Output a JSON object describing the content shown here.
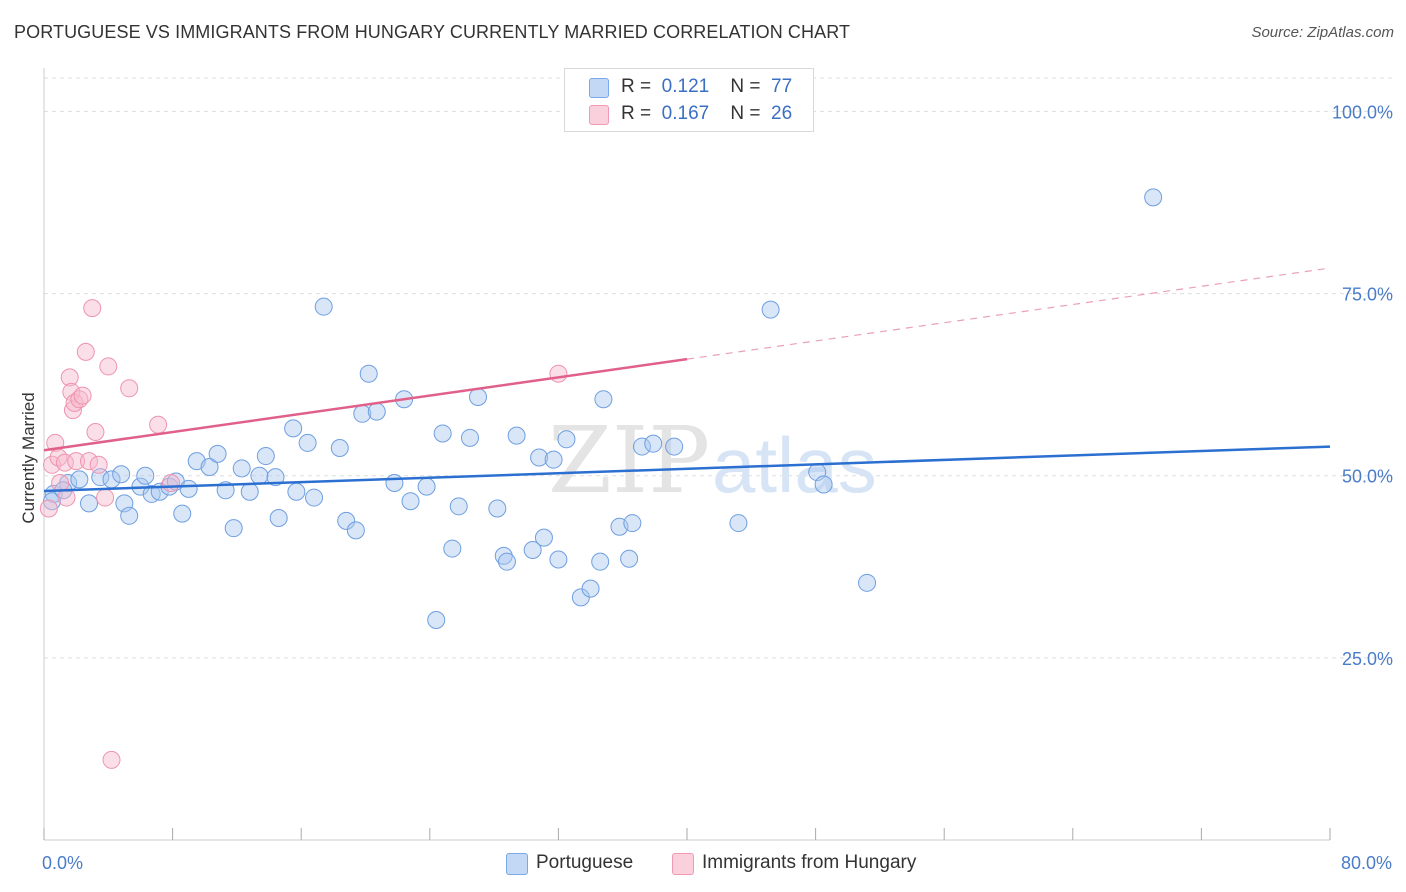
{
  "header": {
    "title": "PORTUGUESE VS IMMIGRANTS FROM HUNGARY CURRENTLY MARRIED CORRELATION CHART",
    "source": "Source: ZipAtlas.com"
  },
  "watermark": {
    "zip": "ZIP",
    "atlas": "atlas"
  },
  "legend": {
    "rows": [
      {
        "r_label": "R =",
        "r_value": "0.121",
        "n_label": "N =",
        "n_value": "77",
        "color": "#a8c8f0"
      },
      {
        "r_label": "R =",
        "r_value": "0.167",
        "n_label": "N =",
        "n_value": "26",
        "color": "#f7b8cc"
      }
    ]
  },
  "bottom_legend": {
    "items": [
      {
        "label": "Portuguese",
        "color": "#a8c8f0"
      },
      {
        "label": "Immigrants from Hungary",
        "color": "#f7b8cc"
      }
    ]
  },
  "chart_data": {
    "type": "scatter",
    "ylabel": "Currently Married",
    "xlim": [
      0,
      80
    ],
    "ylim": [
      0,
      105
    ],
    "x_tick_labels": [
      "0.0%",
      "80.0%"
    ],
    "x_tick_values": [
      0,
      80
    ],
    "y_ticks": [
      {
        "value": 25,
        "label": "25.0%"
      },
      {
        "value": 50,
        "label": "50.0%"
      },
      {
        "value": 75,
        "label": "75.0%"
      },
      {
        "value": 100,
        "label": "100.0%"
      }
    ],
    "grid": true,
    "series": [
      {
        "name": "Portuguese",
        "color": "#7aa8e8",
        "trend": {
          "x0": 0,
          "y0": 47.9,
          "x1": 80,
          "y1": 54.0,
          "color": "#2b6fd1"
        },
        "points": [
          [
            0.6,
            47.5
          ],
          [
            1.5,
            49.0
          ],
          [
            2.2,
            49.5
          ],
          [
            2.8,
            46.2
          ],
          [
            3.5,
            49.8
          ],
          [
            4.2,
            49.5
          ],
          [
            4.8,
            50.2
          ],
          [
            5.0,
            46.2
          ],
          [
            5.3,
            44.5
          ],
          [
            6.0,
            48.5
          ],
          [
            6.3,
            50.0
          ],
          [
            6.7,
            47.5
          ],
          [
            7.2,
            47.8
          ],
          [
            7.8,
            48.5
          ],
          [
            8.2,
            49.2
          ],
          [
            8.6,
            44.8
          ],
          [
            9.0,
            48.2
          ],
          [
            9.5,
            52.0
          ],
          [
            10.3,
            51.2
          ],
          [
            10.8,
            53.0
          ],
          [
            11.3,
            48.0
          ],
          [
            11.8,
            42.8
          ],
          [
            12.3,
            51.0
          ],
          [
            12.8,
            47.8
          ],
          [
            13.4,
            50.0
          ],
          [
            13.8,
            52.7
          ],
          [
            14.4,
            49.8
          ],
          [
            14.6,
            44.2
          ],
          [
            15.5,
            56.5
          ],
          [
            15.7,
            47.8
          ],
          [
            16.4,
            54.5
          ],
          [
            16.8,
            47.0
          ],
          [
            17.4,
            73.2
          ],
          [
            18.4,
            53.8
          ],
          [
            18.8,
            43.8
          ],
          [
            19.4,
            42.5
          ],
          [
            19.8,
            58.5
          ],
          [
            20.2,
            64.0
          ],
          [
            20.7,
            58.8
          ],
          [
            21.8,
            49.0
          ],
          [
            22.4,
            60.5
          ],
          [
            22.8,
            46.5
          ],
          [
            23.8,
            48.5
          ],
          [
            24.4,
            30.2
          ],
          [
            24.8,
            55.8
          ],
          [
            25.4,
            40.0
          ],
          [
            25.8,
            45.8
          ],
          [
            26.5,
            55.2
          ],
          [
            27.0,
            60.8
          ],
          [
            28.2,
            45.5
          ],
          [
            28.6,
            39.0
          ],
          [
            28.8,
            38.2
          ],
          [
            29.4,
            55.5
          ],
          [
            30.4,
            39.8
          ],
          [
            30.8,
            52.5
          ],
          [
            31.1,
            41.5
          ],
          [
            31.7,
            52.2
          ],
          [
            32.0,
            38.5
          ],
          [
            32.5,
            55.0
          ],
          [
            33.4,
            33.3
          ],
          [
            34.0,
            34.5
          ],
          [
            34.6,
            38.2
          ],
          [
            34.8,
            60.5
          ],
          [
            35.8,
            43.0
          ],
          [
            36.4,
            38.6
          ],
          [
            36.6,
            43.5
          ],
          [
            37.2,
            54.0
          ],
          [
            37.9,
            54.4
          ],
          [
            39.2,
            54.0
          ],
          [
            43.2,
            43.5
          ],
          [
            45.2,
            72.8
          ],
          [
            48.1,
            50.5
          ],
          [
            48.5,
            48.8
          ],
          [
            51.2,
            35.3
          ],
          [
            69.0,
            88.2
          ],
          [
            0.5,
            46.5
          ],
          [
            1.2,
            48.0
          ]
        ]
      },
      {
        "name": "Immigrants from Hungary",
        "color": "#f09ab4",
        "trend": {
          "x0": 0,
          "y0": 53.5,
          "x1": 40,
          "y1": 66.0,
          "color": "#e0608a"
        },
        "trend_ext": {
          "x0": 40,
          "y0": 66.0,
          "x1": 80,
          "y1": 78.5
        },
        "points": [
          [
            0.3,
            45.5
          ],
          [
            0.5,
            51.5
          ],
          [
            0.7,
            54.5
          ],
          [
            0.9,
            52.5
          ],
          [
            1.0,
            49.0
          ],
          [
            1.3,
            51.8
          ],
          [
            1.4,
            47.0
          ],
          [
            1.6,
            63.5
          ],
          [
            1.7,
            61.5
          ],
          [
            1.8,
            59.0
          ],
          [
            1.9,
            60.0
          ],
          [
            2.0,
            52.0
          ],
          [
            2.2,
            60.5
          ],
          [
            2.4,
            61.0
          ],
          [
            2.6,
            67.0
          ],
          [
            2.8,
            52.0
          ],
          [
            3.0,
            73.0
          ],
          [
            3.2,
            56.0
          ],
          [
            3.4,
            51.5
          ],
          [
            3.8,
            47.0
          ],
          [
            4.0,
            65.0
          ],
          [
            4.2,
            11.0
          ],
          [
            5.3,
            62.0
          ],
          [
            7.1,
            57.0
          ],
          [
            7.9,
            49.0
          ],
          [
            32.0,
            64.0
          ]
        ]
      }
    ]
  }
}
